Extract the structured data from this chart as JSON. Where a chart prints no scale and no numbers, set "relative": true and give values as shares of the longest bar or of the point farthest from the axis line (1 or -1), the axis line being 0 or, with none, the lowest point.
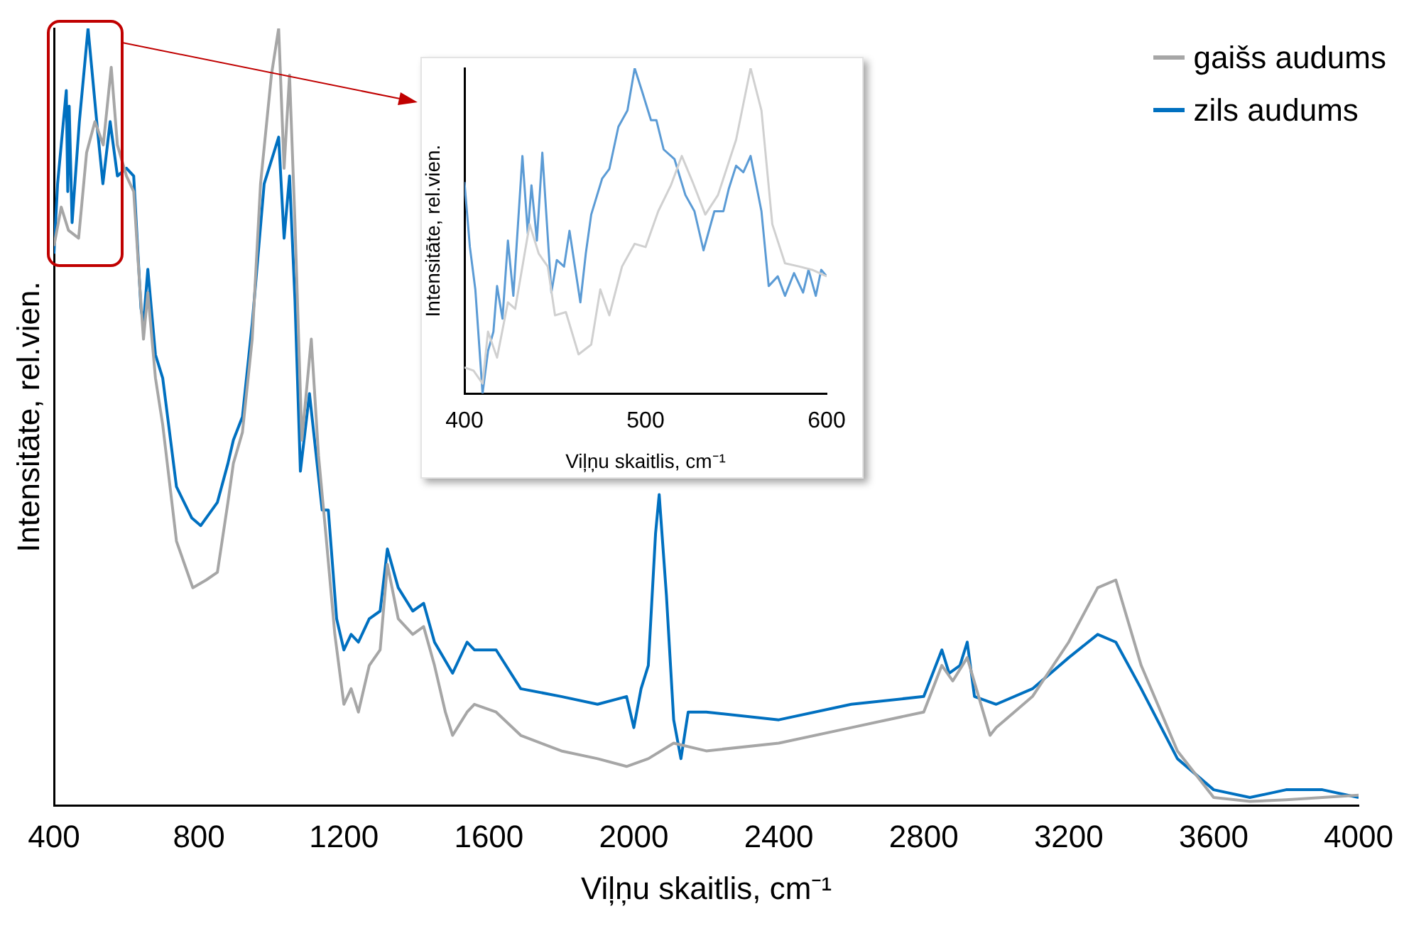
{
  "chart_data": [
    {
      "type": "line",
      "relative": true,
      "xlabel": "Viļņu skaitlis, cm⁻¹",
      "ylabel": "Intensitāte, rel.vien.",
      "xlim": [
        400,
        4000
      ],
      "xticks": [
        400,
        800,
        1200,
        1600,
        2000,
        2400,
        2800,
        3200,
        3600,
        4000
      ],
      "legend": "top right",
      "series": [
        {
          "name": "gaišs audums",
          "color": "#a6a6a6",
          "x": [
            400,
            420,
            440,
            468,
            490,
            513,
            536,
            558,
            575,
            600,
            620,
            635,
            647,
            659,
            680,
            700,
            738,
            783,
            820,
            851,
            880,
            895,
            920,
            947,
            970,
            1000,
            1020,
            1035,
            1050,
            1065,
            1084,
            1110,
            1130,
            1150,
            1175,
            1200,
            1220,
            1240,
            1270,
            1300,
            1320,
            1350,
            1390,
            1420,
            1450,
            1480,
            1500,
            1540,
            1560,
            1620,
            1688,
            1800,
            1900,
            1980,
            2040,
            2110,
            2200,
            2400,
            2600,
            2800,
            2850,
            2880,
            2920,
            2983,
            3000,
            3100,
            3200,
            3280,
            3330,
            3400,
            3500,
            3600,
            3700,
            3800,
            3900,
            4000
          ],
          "values": [
            0.72,
            0.77,
            0.74,
            0.73,
            0.84,
            0.88,
            0.85,
            0.95,
            0.85,
            0.81,
            0.79,
            0.68,
            0.6,
            0.66,
            0.55,
            0.49,
            0.34,
            0.28,
            0.29,
            0.3,
            0.39,
            0.44,
            0.48,
            0.6,
            0.8,
            0.94,
            1.0,
            0.82,
            0.94,
            0.75,
            0.47,
            0.6,
            0.45,
            0.35,
            0.22,
            0.13,
            0.15,
            0.12,
            0.18,
            0.2,
            0.31,
            0.24,
            0.22,
            0.23,
            0.18,
            0.12,
            0.09,
            0.12,
            0.13,
            0.12,
            0.09,
            0.07,
            0.06,
            0.05,
            0.06,
            0.08,
            0.07,
            0.08,
            0.1,
            0.12,
            0.18,
            0.16,
            0.19,
            0.09,
            0.1,
            0.14,
            0.21,
            0.28,
            0.29,
            0.18,
            0.07,
            0.01,
            0.005,
            0.007,
            0.01,
            0.013
          ]
        },
        {
          "name": "zils audums",
          "color": "#0070c0",
          "x": [
            400,
            410,
            420,
            434,
            438,
            442,
            450,
            470,
            494,
            520,
            535,
            555,
            575,
            600,
            620,
            640,
            647,
            659,
            680,
            700,
            738,
            780,
            805,
            851,
            880,
            895,
            920,
            947,
            980,
            1000,
            1020,
            1035,
            1050,
            1065,
            1080,
            1105,
            1140,
            1157,
            1180,
            1200,
            1220,
            1240,
            1270,
            1300,
            1320,
            1350,
            1390,
            1420,
            1450,
            1500,
            1540,
            1560,
            1620,
            1688,
            1800,
            1900,
            1980,
            2000,
            2020,
            2040,
            2060,
            2070,
            2090,
            2110,
            2130,
            2150,
            2200,
            2400,
            2600,
            2800,
            2850,
            2870,
            2900,
            2920,
            2940,
            3000,
            3100,
            3200,
            3280,
            3330,
            3400,
            3500,
            3600,
            3700,
            3800,
            3900,
            4000
          ],
          "values": [
            0.71,
            0.8,
            0.85,
            0.92,
            0.79,
            0.9,
            0.75,
            0.88,
            1.0,
            0.87,
            0.8,
            0.88,
            0.81,
            0.82,
            0.81,
            0.64,
            0.62,
            0.69,
            0.58,
            0.55,
            0.41,
            0.37,
            0.36,
            0.39,
            0.44,
            0.47,
            0.5,
            0.62,
            0.8,
            0.83,
            0.86,
            0.73,
            0.81,
            0.65,
            0.43,
            0.53,
            0.38,
            0.38,
            0.24,
            0.2,
            0.22,
            0.21,
            0.24,
            0.25,
            0.33,
            0.28,
            0.25,
            0.26,
            0.21,
            0.17,
            0.21,
            0.2,
            0.2,
            0.15,
            0.14,
            0.13,
            0.14,
            0.1,
            0.15,
            0.18,
            0.35,
            0.4,
            0.27,
            0.11,
            0.06,
            0.12,
            0.12,
            0.11,
            0.13,
            0.14,
            0.2,
            0.17,
            0.18,
            0.21,
            0.14,
            0.13,
            0.15,
            0.19,
            0.22,
            0.21,
            0.15,
            0.06,
            0.02,
            0.01,
            0.02,
            0.02,
            0.01
          ]
        }
      ]
    },
    {
      "type": "line",
      "relative": true,
      "xlabel": "Viļņu skaitlis, cm⁻¹",
      "ylabel": "Intensitāte, rel.vien.",
      "xlim": [
        400,
        600
      ],
      "xticks": [
        400,
        500,
        600
      ],
      "series": [
        {
          "color": "#d0d0d0",
          "x": [
            400,
            405,
            410,
            413,
            418,
            424,
            428,
            436,
            441,
            446,
            450,
            456,
            463,
            470,
            475,
            480,
            487,
            494,
            500,
            507,
            514,
            520,
            526,
            533,
            540,
            550,
            558,
            564,
            570,
            577,
            585,
            592,
            600
          ],
          "values": [
            0.08,
            0.07,
            0.03,
            0.19,
            0.11,
            0.28,
            0.26,
            0.52,
            0.43,
            0.39,
            0.24,
            0.25,
            0.12,
            0.15,
            0.32,
            0.24,
            0.39,
            0.46,
            0.45,
            0.56,
            0.64,
            0.73,
            0.65,
            0.55,
            0.61,
            0.78,
            1.0,
            0.87,
            0.52,
            0.4,
            0.39,
            0.38,
            0.36
          ]
        },
        {
          "color": "#5b9bd5",
          "x": [
            400,
            403,
            406,
            410,
            413,
            416,
            418,
            421,
            424,
            427,
            432,
            435,
            437,
            440,
            443,
            448,
            451,
            455,
            458,
            464,
            467,
            470,
            476,
            480,
            485,
            490,
            494,
            498,
            503,
            506,
            510,
            516,
            522,
            527,
            532,
            538,
            543,
            546,
            550,
            554,
            558,
            564,
            568,
            573,
            577,
            582,
            587,
            590,
            594,
            597,
            600
          ],
          "values": [
            0.65,
            0.45,
            0.32,
            0.0,
            0.13,
            0.19,
            0.33,
            0.23,
            0.47,
            0.3,
            0.73,
            0.49,
            0.64,
            0.47,
            0.74,
            0.31,
            0.41,
            0.39,
            0.5,
            0.28,
            0.43,
            0.55,
            0.66,
            0.69,
            0.82,
            0.87,
            1.0,
            0.93,
            0.84,
            0.84,
            0.75,
            0.72,
            0.61,
            0.56,
            0.44,
            0.56,
            0.56,
            0.63,
            0.7,
            0.68,
            0.73,
            0.56,
            0.33,
            0.36,
            0.3,
            0.37,
            0.31,
            0.38,
            0.3,
            0.38,
            0.36
          ]
        }
      ]
    }
  ]
}
